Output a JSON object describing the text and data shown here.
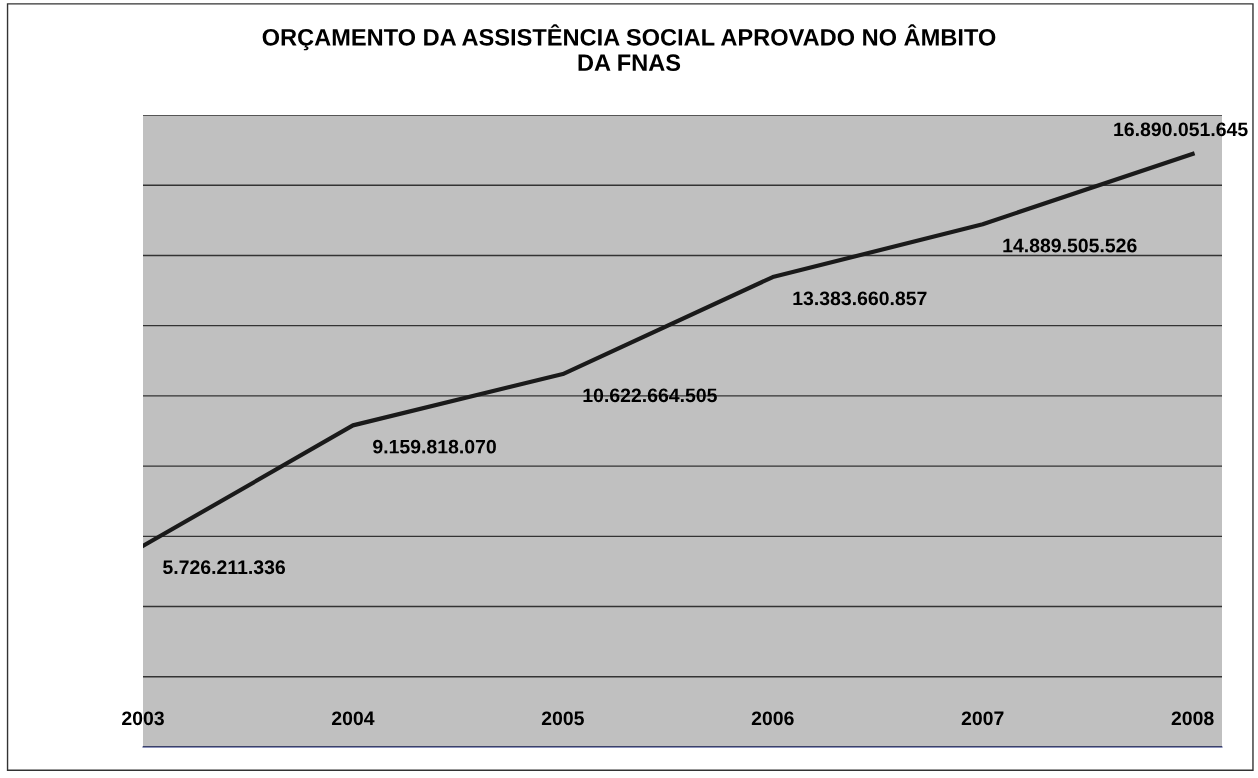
{
  "chart_data": {
    "type": "line",
    "title": "ORÇAMENTO DA ASSISTÊNCIA SOCIAL APROVADO NO ÂMBITO\nDA FNAS",
    "categories": [
      "2003",
      "2004",
      "2005",
      "2006",
      "2007",
      "2008"
    ],
    "series": [
      {
        "color": "#1a1a1a",
        "values": [
          5726211336,
          9159818070,
          10622664505,
          13383660857,
          14889505526,
          16890051645
        ],
        "value_labels": [
          "5.726.211.336",
          "9.159.818.070",
          "10.622.664.505",
          "13.383.660.857",
          "14.889.505.526",
          "16.890.051.645"
        ]
      }
    ],
    "ylim": [
      0,
      18000000000
    ],
    "yticks": [
      {
        "value": 0,
        "label": null
      },
      {
        "value": 2000000000,
        "label": null
      },
      {
        "value": 4000000000,
        "label": null
      },
      {
        "value": 6000000000,
        "label": null
      },
      {
        "value": 8000000000,
        "label": null
      },
      {
        "value": 10000000000,
        "label": null
      },
      {
        "value": 12000000000,
        "label": null
      },
      {
        "value": 14000000000,
        "label": null
      },
      {
        "value": 16000000000,
        "label": null
      },
      {
        "value": 18000000000,
        "label": null
      }
    ],
    "tick_labels": "x",
    "grid": "y",
    "legend": false,
    "marker": "none",
    "line_style": "solid"
  }
}
